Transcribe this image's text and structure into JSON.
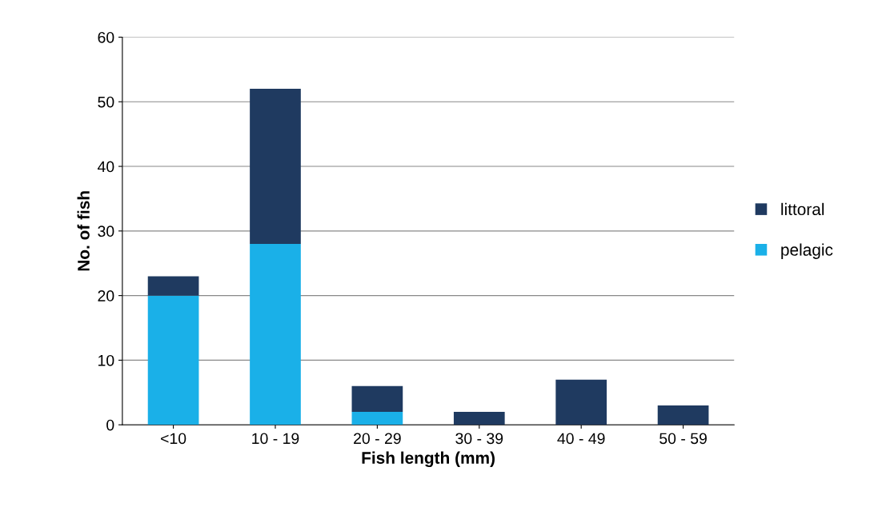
{
  "chart_data": {
    "type": "bar",
    "stacked": true,
    "xlabel": "Fish length (mm)",
    "ylabel": "No. of fish",
    "categories": [
      "<10",
      "10 - 19",
      "20 - 29",
      "30 - 39",
      "40 - 49",
      "50 - 59"
    ],
    "series": [
      {
        "name": "pelagic",
        "color": "#1ab0e8",
        "values": [
          20,
          28,
          2,
          0,
          0,
          0
        ]
      },
      {
        "name": "littoral",
        "color": "#1f3a60",
        "values": [
          3,
          24,
          4,
          2,
          7,
          3
        ]
      }
    ],
    "ylim": [
      0,
      60
    ],
    "yticks": [
      0,
      10,
      20,
      30,
      40,
      50,
      60
    ],
    "grid": "y",
    "legend": "right"
  }
}
